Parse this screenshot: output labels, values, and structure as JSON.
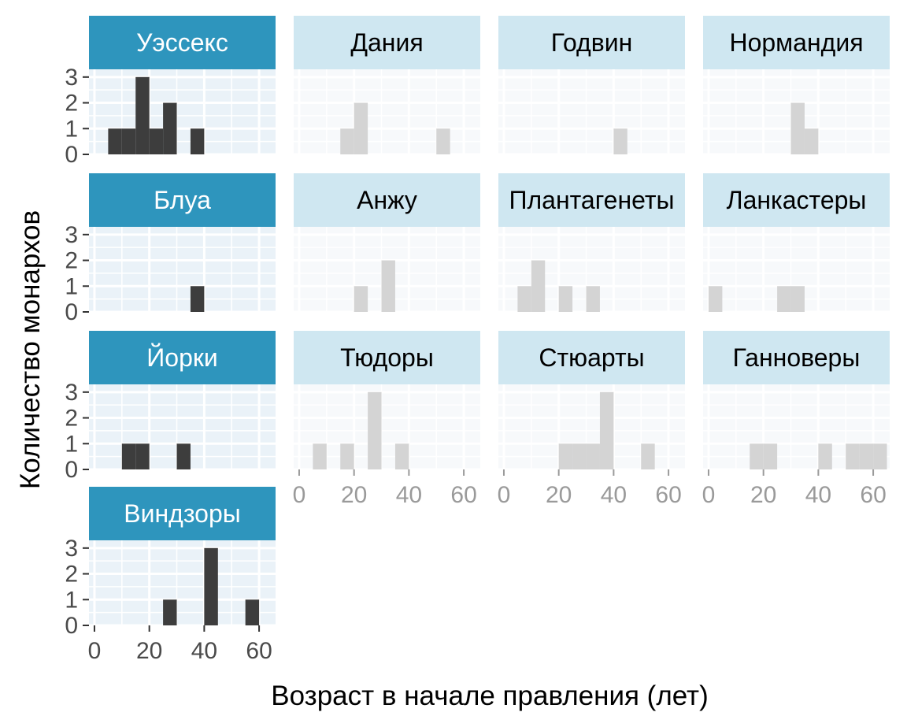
{
  "chart_data": {
    "type": "bar",
    "xlabel": "Возраст в начале правления (лет)",
    "ylabel": "Количество монархов",
    "xlim": [
      -2,
      66
    ],
    "ylim": [
      0,
      3.3
    ],
    "x_ticks": [
      0,
      20,
      40,
      60
    ],
    "y_ticks": [
      0,
      1,
      2,
      3
    ],
    "bin_width": 5,
    "grid": true,
    "colors": {
      "highlight_bar": "#3d3d3d",
      "muted_bar": "#d4d4d4",
      "highlight_strip": "#2e95bd",
      "muted_strip": "#cfe7f1",
      "panel_bg": "#eaf2f8",
      "muted_panel_bg": "#f7f9fb",
      "grid": "#ffffff"
    },
    "panels": [
      {
        "name": "Уэссекс",
        "highlighted": true,
        "x_axis": false,
        "bins": [
          {
            "x0": 5,
            "x1": 10,
            "count": 1
          },
          {
            "x0": 10,
            "x1": 15,
            "count": 1
          },
          {
            "x0": 15,
            "x1": 20,
            "count": 3
          },
          {
            "x0": 20,
            "x1": 25,
            "count": 1
          },
          {
            "x0": 25,
            "x1": 30,
            "count": 2
          },
          {
            "x0": 35,
            "x1": 40,
            "count": 1
          }
        ]
      },
      {
        "name": "Дания",
        "highlighted": false,
        "x_axis": false,
        "bins": [
          {
            "x0": 15,
            "x1": 20,
            "count": 1
          },
          {
            "x0": 20,
            "x1": 25,
            "count": 2
          },
          {
            "x0": 50,
            "x1": 55,
            "count": 1
          }
        ]
      },
      {
        "name": "Годвин",
        "highlighted": false,
        "x_axis": false,
        "bins": [
          {
            "x0": 40,
            "x1": 45,
            "count": 1
          }
        ]
      },
      {
        "name": "Нормандия",
        "highlighted": false,
        "x_axis": false,
        "bins": [
          {
            "x0": 30,
            "x1": 35,
            "count": 2
          },
          {
            "x0": 35,
            "x1": 40,
            "count": 1
          }
        ]
      },
      {
        "name": "Блуа",
        "highlighted": true,
        "x_axis": false,
        "bins": [
          {
            "x0": 35,
            "x1": 40,
            "count": 1
          }
        ]
      },
      {
        "name": "Анжу",
        "highlighted": false,
        "x_axis": false,
        "bins": [
          {
            "x0": 20,
            "x1": 25,
            "count": 1
          },
          {
            "x0": 30,
            "x1": 35,
            "count": 2
          }
        ]
      },
      {
        "name": "Плантагенеты",
        "highlighted": false,
        "x_axis": false,
        "bins": [
          {
            "x0": 5,
            "x1": 10,
            "count": 1
          },
          {
            "x0": 10,
            "x1": 15,
            "count": 2
          },
          {
            "x0": 20,
            "x1": 25,
            "count": 1
          },
          {
            "x0": 30,
            "x1": 35,
            "count": 1
          }
        ]
      },
      {
        "name": "Ланкастеры",
        "highlighted": false,
        "x_axis": false,
        "bins": [
          {
            "x0": 0,
            "x1": 5,
            "count": 1
          },
          {
            "x0": 25,
            "x1": 30,
            "count": 1
          },
          {
            "x0": 30,
            "x1": 35,
            "count": 1
          }
        ]
      },
      {
        "name": "Йорки",
        "highlighted": true,
        "x_axis": false,
        "bins": [
          {
            "x0": 10,
            "x1": 15,
            "count": 1
          },
          {
            "x0": 15,
            "x1": 20,
            "count": 1
          },
          {
            "x0": 30,
            "x1": 35,
            "count": 1
          }
        ]
      },
      {
        "name": "Тюдоры",
        "highlighted": false,
        "x_axis": true,
        "bins": [
          {
            "x0": 5,
            "x1": 10,
            "count": 1
          },
          {
            "x0": 15,
            "x1": 20,
            "count": 1
          },
          {
            "x0": 25,
            "x1": 30,
            "count": 3
          },
          {
            "x0": 35,
            "x1": 40,
            "count": 1
          }
        ]
      },
      {
        "name": "Стюарты",
        "highlighted": false,
        "x_axis": true,
        "bins": [
          {
            "x0": 20,
            "x1": 25,
            "count": 1
          },
          {
            "x0": 25,
            "x1": 30,
            "count": 1
          },
          {
            "x0": 30,
            "x1": 35,
            "count": 1
          },
          {
            "x0": 35,
            "x1": 40,
            "count": 3
          },
          {
            "x0": 50,
            "x1": 55,
            "count": 1
          }
        ]
      },
      {
        "name": "Ганноверы",
        "highlighted": false,
        "x_axis": true,
        "bins": [
          {
            "x0": 15,
            "x1": 20,
            "count": 1
          },
          {
            "x0": 20,
            "x1": 25,
            "count": 1
          },
          {
            "x0": 40,
            "x1": 45,
            "count": 1
          },
          {
            "x0": 50,
            "x1": 55,
            "count": 1
          },
          {
            "x0": 55,
            "x1": 60,
            "count": 1
          },
          {
            "x0": 60,
            "x1": 65,
            "count": 1
          }
        ]
      },
      {
        "name": "Виндзоры",
        "highlighted": true,
        "x_axis": true,
        "bins": [
          {
            "x0": 25,
            "x1": 30,
            "count": 1
          },
          {
            "x0": 40,
            "x1": 45,
            "count": 3
          },
          {
            "x0": 55,
            "x1": 60,
            "count": 1
          }
        ]
      }
    ]
  }
}
